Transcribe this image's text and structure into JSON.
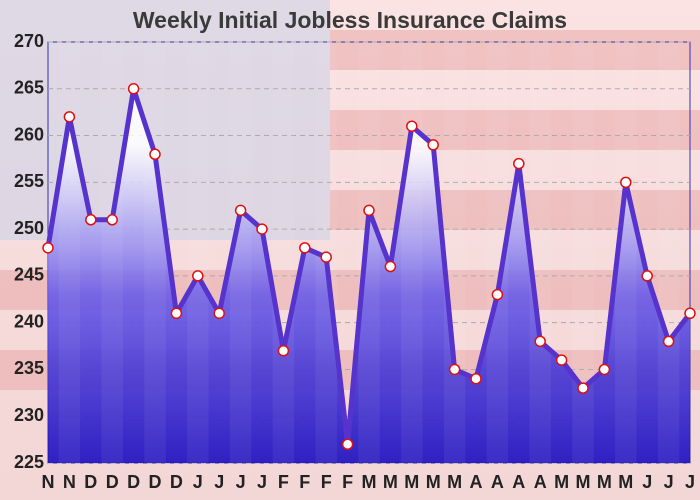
{
  "chart_data": {
    "type": "line",
    "title": "Weekly Initial Jobless  Insurance Claims",
    "categories": [
      "N",
      "N",
      "D",
      "D",
      "D",
      "D",
      "D",
      "J",
      "J",
      "J",
      "J",
      "F",
      "F",
      "F",
      "F",
      "M",
      "M",
      "M",
      "M",
      "M",
      "A",
      "A",
      "A",
      "A",
      "M",
      "M",
      "M",
      "M",
      "J",
      "J",
      "J"
    ],
    "values": [
      248,
      262,
      251,
      251,
      265,
      258,
      241,
      245,
      241,
      252,
      250,
      237,
      248,
      247,
      227,
      252,
      246,
      261,
      259,
      235,
      234,
      243,
      257,
      238,
      236,
      233,
      235,
      255,
      245,
      238,
      241
    ],
    "color": "#5533cc",
    "marker_edge_color": "#dd1111",
    "ylim": [
      225,
      270
    ],
    "yticks": [
      225,
      230,
      235,
      240,
      245,
      250,
      255,
      260,
      265,
      270
    ],
    "grid": true
  }
}
